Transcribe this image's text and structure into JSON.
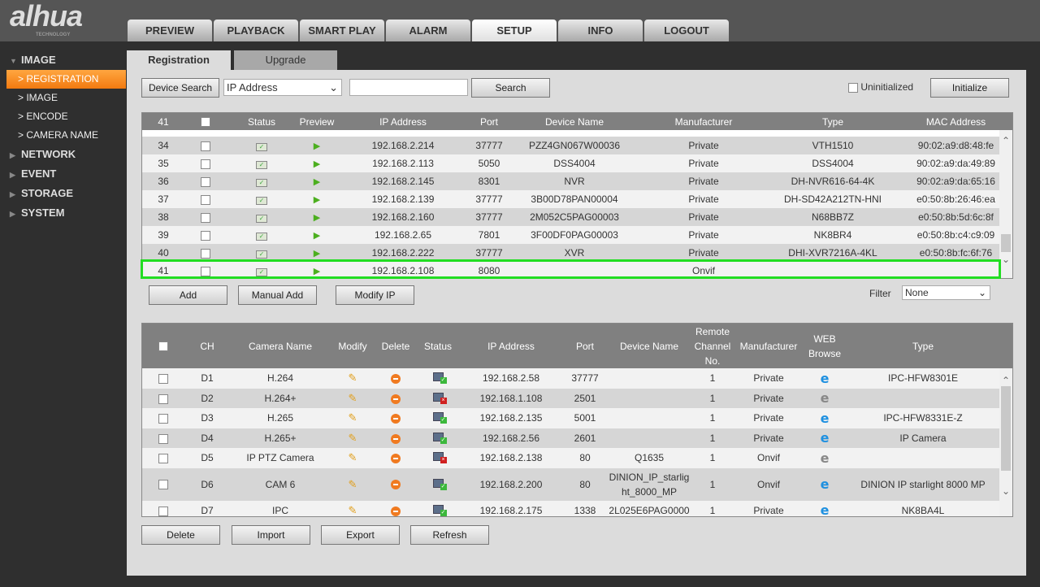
{
  "brand": {
    "logo": "alhua",
    "tagline": "TECHNOLOGY"
  },
  "nav": [
    "PREVIEW",
    "PLAYBACK",
    "SMART PLAY",
    "ALARM",
    "SETUP",
    "INFO",
    "LOGOUT"
  ],
  "nav_active": "SETUP",
  "sidebar": {
    "groups": [
      {
        "label": "IMAGE",
        "expanded": true,
        "items": [
          {
            "label": "REGISTRATION",
            "active": true
          },
          {
            "label": "IMAGE"
          },
          {
            "label": "ENCODE"
          },
          {
            "label": "CAMERA NAME"
          }
        ]
      },
      {
        "label": "NETWORK"
      },
      {
        "label": "EVENT"
      },
      {
        "label": "STORAGE"
      },
      {
        "label": "SYSTEM"
      }
    ]
  },
  "subtabs": {
    "registration": "Registration",
    "upgrade": "Upgrade"
  },
  "search": {
    "device_search": "Device Search",
    "filter_type": "IP Address",
    "value": "",
    "search_button": "Search",
    "uninitialized_label": "Uninitialized",
    "initialize_button": "Initialize"
  },
  "devices": {
    "header_count": "41",
    "columns": [
      "Status",
      "Preview",
      "IP Address",
      "Port",
      "Device Name",
      "Manufacturer",
      "Type",
      "MAC Address"
    ],
    "rows": [
      {
        "no": "34",
        "ip": "192.168.2.214",
        "port": "37777",
        "name": "PZZ4GN067W00036",
        "mfr": "Private",
        "type": "VTH1510",
        "mac": "90:02:a9:d8:48:fe"
      },
      {
        "no": "35",
        "ip": "192.168.2.113",
        "port": "5050",
        "name": "DSS4004",
        "mfr": "Private",
        "type": "DSS4004",
        "mac": "90:02:a9:da:49:89"
      },
      {
        "no": "36",
        "ip": "192.168.2.145",
        "port": "8301",
        "name": "NVR",
        "mfr": "Private",
        "type": "DH-NVR616-64-4K",
        "mac": "90:02:a9:da:65:16"
      },
      {
        "no": "37",
        "ip": "192.168.2.139",
        "port": "37777",
        "name": "3B00D78PAN00004",
        "mfr": "Private",
        "type": "DH-SD42A212TN-HNI",
        "mac": "e0:50:8b:26:46:ea"
      },
      {
        "no": "38",
        "ip": "192.168.2.160",
        "port": "37777",
        "name": "2M052C5PAG00003",
        "mfr": "Private",
        "type": "N68BB7Z",
        "mac": "e0:50:8b:5d:6c:8f"
      },
      {
        "no": "39",
        "ip": "192.168.2.65",
        "port": "7801",
        "name": "3F00DF0PAG00003",
        "mfr": "Private",
        "type": "NK8BR4",
        "mac": "e0:50:8b:c4:c9:09"
      },
      {
        "no": "40",
        "ip": "192.168.2.222",
        "port": "37777",
        "name": "XVR",
        "mfr": "Private",
        "type": "DHI-XVR7216A-4KL",
        "mac": "e0:50:8b:fc:6f:76"
      },
      {
        "no": "41",
        "ip": "192.168.2.108",
        "port": "8080",
        "name": "",
        "mfr": "Onvif",
        "type": "",
        "mac": "",
        "highlighted": true
      }
    ]
  },
  "actions": {
    "add": "Add",
    "manual_add": "Manual Add",
    "modify_ip": "Modify IP",
    "filter_label": "Filter",
    "filter_value": "None"
  },
  "channels": {
    "columns": [
      "CH",
      "Camera Name",
      "Modify",
      "Delete",
      "Status",
      "IP Address",
      "Port",
      "Device Name",
      "Remote Channel No.",
      "Manufacturer",
      "WEB Browse",
      "Type"
    ],
    "rows": [
      {
        "ch": "D1",
        "cam": "H.264",
        "status": "online",
        "ip": "192.168.2.58",
        "port": "37777",
        "dev": "",
        "rch": "1",
        "mfr": "Private",
        "web": true,
        "type": "IPC-HFW8301E"
      },
      {
        "ch": "D2",
        "cam": "H.264+",
        "status": "offline",
        "ip": "192.168.1.108",
        "port": "2501",
        "dev": "",
        "rch": "1",
        "mfr": "Private",
        "web": false,
        "type": ""
      },
      {
        "ch": "D3",
        "cam": "H.265",
        "status": "online",
        "ip": "192.168.2.135",
        "port": "5001",
        "dev": "",
        "rch": "1",
        "mfr": "Private",
        "web": true,
        "type": "IPC-HFW8331E-Z"
      },
      {
        "ch": "D4",
        "cam": "H.265+",
        "status": "online",
        "ip": "192.168.2.56",
        "port": "2601",
        "dev": "",
        "rch": "1",
        "mfr": "Private",
        "web": true,
        "type": "IP Camera"
      },
      {
        "ch": "D5",
        "cam": "IP PTZ Camera",
        "status": "offline",
        "ip": "192.168.2.138",
        "port": "80",
        "dev": "Q1635",
        "rch": "1",
        "mfr": "Onvif",
        "web": false,
        "type": ""
      },
      {
        "ch": "D6",
        "cam": "CAM 6",
        "status": "online",
        "ip": "192.168.2.200",
        "port": "80",
        "dev": "DINION_IP_starlight_8000_MP",
        "rch": "1",
        "mfr": "Onvif",
        "web": true,
        "type": "DINION IP starlight 8000 MP"
      },
      {
        "ch": "D7",
        "cam": "IPC",
        "status": "online",
        "ip": "192.168.2.175",
        "port": "1338",
        "dev": "2L025E6PAG0000",
        "rch": "1",
        "mfr": "Private",
        "web": true,
        "type": "NK8BA4L"
      }
    ]
  },
  "bottom": {
    "delete": "Delete",
    "import": "Import",
    "export": "Export",
    "refresh": "Refresh"
  },
  "colors": {
    "accent": "#f27a10",
    "highlight": "#22dd22",
    "header": "#808080",
    "ie_active": "#1e90e0",
    "ie_inactive": "#888888"
  }
}
